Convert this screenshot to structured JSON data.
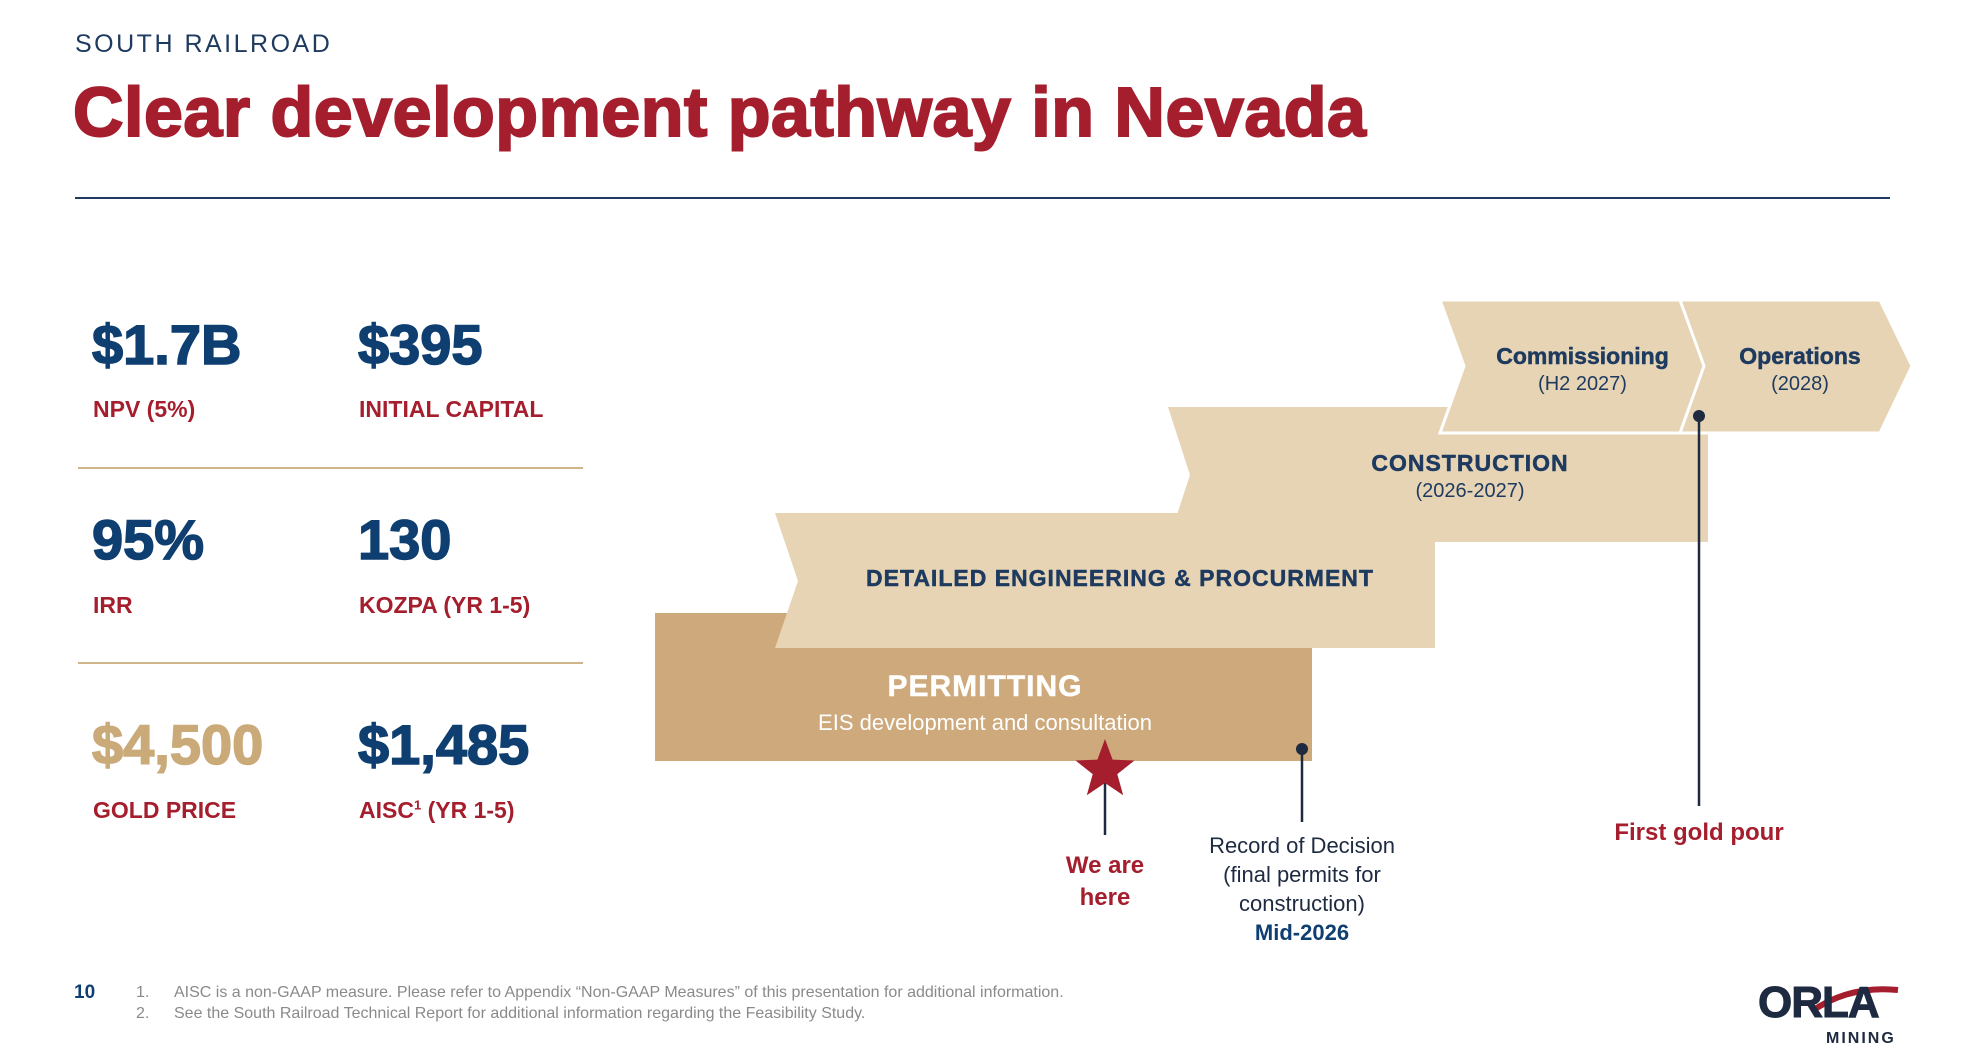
{
  "header": {
    "overline": "SOUTH RAILROAD",
    "title": "Clear development pathway in Nevada"
  },
  "metrics": [
    {
      "value": "$1.7B",
      "label": "NPV (5%)"
    },
    {
      "value": "$395",
      "label": "INITIAL CAPITAL"
    },
    {
      "value": "95%",
      "label": "IRR"
    },
    {
      "value": "130",
      "label": "KOZPA (YR 1-5)"
    },
    {
      "value": "$4,500",
      "label": "GOLD PRICE"
    },
    {
      "value": "$1,485",
      "label": "AISC",
      "label_sup": "1",
      "label_suffix": " (YR 1-5)"
    }
  ],
  "timeline": {
    "permitting": {
      "title": "PERMITTING",
      "subtitle": "EIS development and consultation"
    },
    "engineering": {
      "title": "DETAILED ENGINEERING & PROCURMENT"
    },
    "construction": {
      "title": "CONSTRUCTION",
      "subtitle": "(2026-2027)"
    },
    "commissioning": {
      "title": "Commissioning",
      "subtitle": "(H2 2027)"
    },
    "operations": {
      "title": "Operations",
      "subtitle": "(2028)"
    }
  },
  "callouts": {
    "here": {
      "line1": "We are",
      "line2": "here"
    },
    "rod": {
      "line1": "Record of Decision",
      "line2": "(final permits for",
      "line3": "construction)",
      "line4": "Mid-2026"
    },
    "gold": {
      "line1": "First gold pour"
    }
  },
  "footer": {
    "page_number": "10",
    "notes": [
      {
        "num": "1.",
        "text": "AISC is a non-GAAP measure. Please refer to Appendix “Non-GAAP Measures” of this presentation for additional information."
      },
      {
        "num": "2.",
        "text": "See the South Railroad Technical Report for additional information regarding the Feasibility Study."
      }
    ]
  },
  "logo": {
    "main": "ORLA",
    "sub": "MINING"
  },
  "colors": {
    "title_red": "#a51e2d",
    "navy": "#0e3f70",
    "gold": "#c9aa78",
    "tan_light": "#e6d4b5",
    "tan_dark": "#cda97b"
  }
}
